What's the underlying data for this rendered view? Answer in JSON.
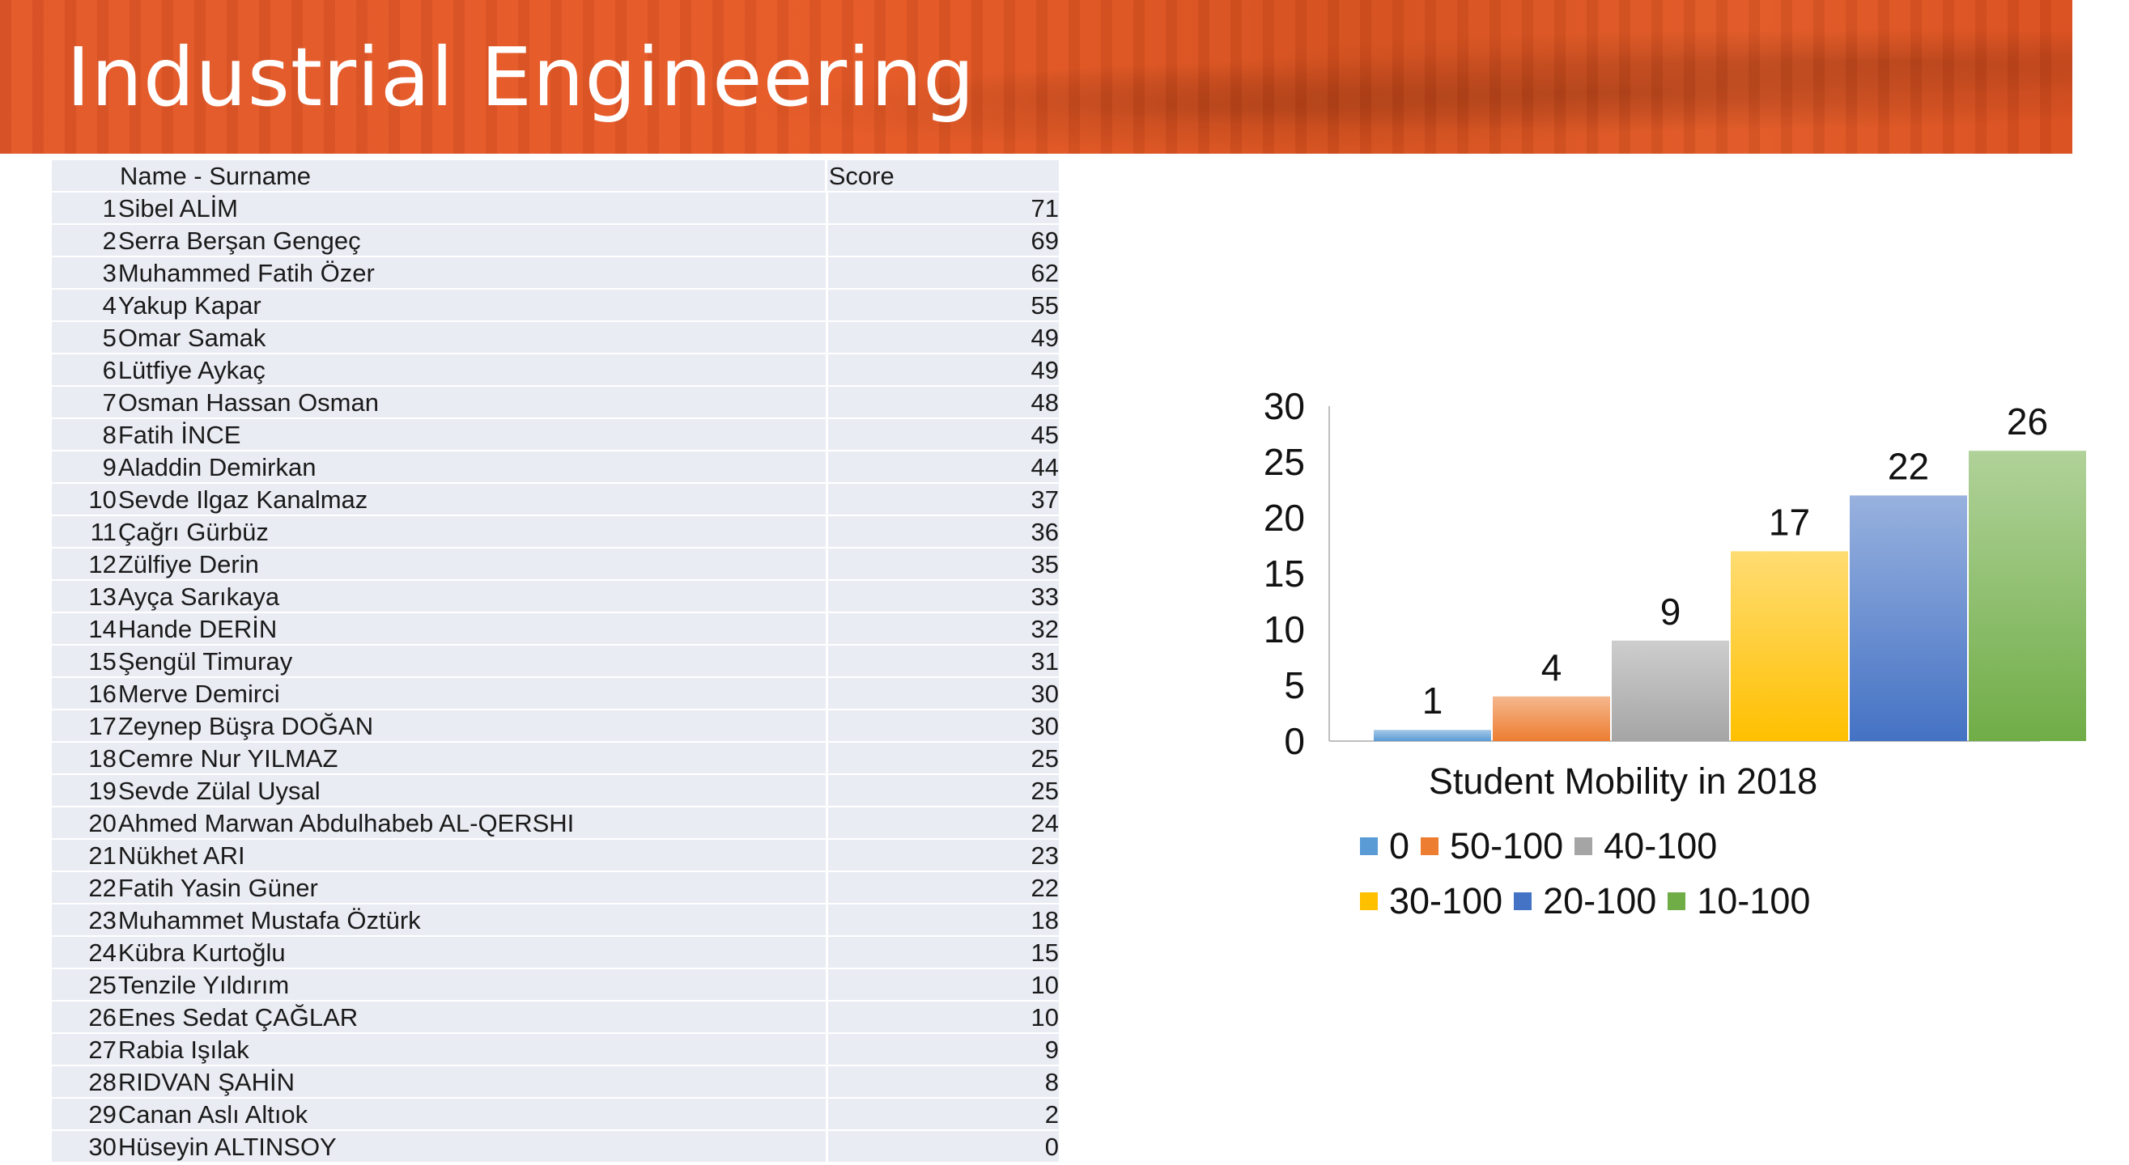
{
  "header": {
    "title": "Industrial Engineering"
  },
  "table": {
    "headers": {
      "name": "Name - Surname",
      "score": "Score"
    },
    "rows": [
      {
        "no": "1",
        "name": "Sibel ALİM",
        "score": "71"
      },
      {
        "no": "2",
        "name": "Serra Berşan Gengeç",
        "score": "69"
      },
      {
        "no": "3",
        "name": "Muhammed Fatih Özer",
        "score": "62"
      },
      {
        "no": "4",
        "name": "Yakup Kapar",
        "score": "55"
      },
      {
        "no": "5",
        "name": "Omar Samak",
        "score": "49"
      },
      {
        "no": "6",
        "name": "Lütfiye Aykaç",
        "score": "49"
      },
      {
        "no": "7",
        "name": "Osman Hassan Osman",
        "score": "48"
      },
      {
        "no": "8",
        "name": "Fatih İNCE",
        "score": "45"
      },
      {
        "no": "9",
        "name": "Aladdin Demirkan",
        "score": "44"
      },
      {
        "no": "10",
        "name": "Sevde Ilgaz Kanalmaz",
        "score": "37"
      },
      {
        "no": "11",
        "name": "Çağrı Gürbüz",
        "score": "36"
      },
      {
        "no": "12",
        "name": "Zülfiye Derin",
        "score": "35"
      },
      {
        "no": "13",
        "name": "Ayça Sarıkaya",
        "score": "33"
      },
      {
        "no": "14",
        "name": "Hande DERİN",
        "score": "32"
      },
      {
        "no": "15",
        "name": "Şengül Timuray",
        "score": "31"
      },
      {
        "no": "16",
        "name": "Merve Demirci",
        "score": "30"
      },
      {
        "no": "17",
        "name": "Zeynep Büşra DOĞAN",
        "score": "30"
      },
      {
        "no": "18",
        "name": "Cemre Nur YILMAZ",
        "score": "25"
      },
      {
        "no": "19",
        "name": "Sevde Zülal Uysal",
        "score": "25"
      },
      {
        "no": "20",
        "name": "Ahmed Marwan Abdulhabeb AL-QERSHI",
        "score": "24"
      },
      {
        "no": "21",
        "name": "Nükhet ARI",
        "score": "23"
      },
      {
        "no": "22",
        "name": "Fatih Yasin Güner",
        "score": "22"
      },
      {
        "no": "23",
        "name": "Muhammet Mustafa Öztürk",
        "score": "18"
      },
      {
        "no": "24",
        "name": "Kübra Kurtoğlu",
        "score": "15"
      },
      {
        "no": "25",
        "name": "Tenzile Yıldırım",
        "score": "10"
      },
      {
        "no": "26",
        "name": "Enes Sedat ÇAĞLAR",
        "score": "10"
      },
      {
        "no": "27",
        "name": "Rabia Işılak",
        "score": "9"
      },
      {
        "no": "28",
        "name": "RIDVAN ŞAHİN",
        "score": "8"
      },
      {
        "no": "29",
        "name": "Canan Aslı Altıok",
        "score": "2"
      },
      {
        "no": "30",
        "name": "Hüseyin ALTINSOY",
        "score": "0"
      }
    ]
  },
  "chart_data": {
    "type": "bar",
    "title": "Student Mobility in 2018",
    "categories": [
      "0",
      "50-100",
      "40-100",
      "30-100",
      "20-100",
      "10-100"
    ],
    "values": [
      1,
      4,
      9,
      17,
      22,
      26
    ],
    "colors": [
      "#5b9bd5",
      "#ed7d31",
      "#a5a5a5",
      "#ffc000",
      "#4472c4",
      "#70ad47"
    ],
    "ylim": [
      0,
      30
    ],
    "yticks": [
      0,
      5,
      10,
      15,
      20,
      25,
      30
    ],
    "xlabel": "",
    "ylabel": "",
    "grid": false,
    "data_labels": true,
    "legend_position": "bottom"
  }
}
